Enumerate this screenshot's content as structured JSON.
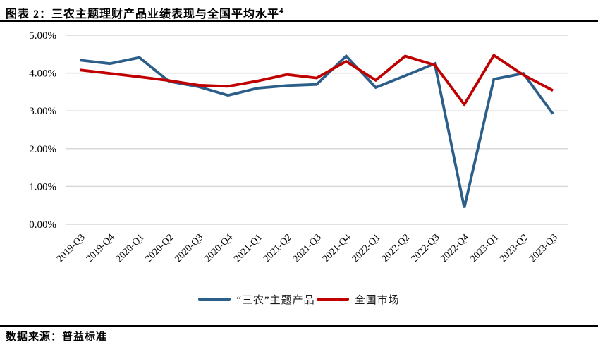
{
  "header": {
    "title": "图表 2：三农主题理财产品业绩表现与全国平均水平",
    "footnote_ref": "4"
  },
  "source": {
    "label": "数据来源：普益标准"
  },
  "colors": {
    "sannong_line": "#2B5F8A",
    "national_line": "#C00000",
    "gridline": "#D9D9D9",
    "rule": "#000000"
  },
  "chart_data": {
    "type": "line",
    "title": "三农主题理财产品业绩表现与全国平均水平",
    "categories": [
      "2019-Q3",
      "2019-Q4",
      "2020-Q1",
      "2020-Q2",
      "2020-Q3",
      "2020-Q4",
      "2021-Q1",
      "2021-Q2",
      "2021-Q3",
      "2021-Q4",
      "2022-Q1",
      "2022-Q2",
      "2022-Q3",
      "2022-Q4",
      "2023-Q1",
      "2023-Q2",
      "2023-Q3"
    ],
    "series": [
      {
        "name": "“三农”主题产品",
        "color": "#2B5F8A",
        "values": [
          4.34,
          4.25,
          4.41,
          3.78,
          3.64,
          3.41,
          3.6,
          3.67,
          3.7,
          4.45,
          3.62,
          3.93,
          4.25,
          0.44,
          3.84,
          3.99,
          2.92
        ]
      },
      {
        "name": "全国市场",
        "color": "#C00000",
        "values": [
          4.08,
          3.99,
          3.9,
          3.8,
          3.68,
          3.65,
          3.79,
          3.96,
          3.87,
          4.31,
          3.81,
          4.45,
          4.21,
          3.17,
          4.47,
          3.95,
          3.54
        ]
      }
    ],
    "ylim": [
      0,
      5
    ],
    "yticks": [
      {
        "value": 5,
        "label": "5.00%"
      },
      {
        "value": 4,
        "label": "4.00%"
      },
      {
        "value": 3,
        "label": "3.00%"
      },
      {
        "value": 2,
        "label": "2.00%"
      },
      {
        "value": 1,
        "label": "1.00%"
      },
      {
        "value": 0,
        "label": "0.00%"
      }
    ],
    "xlabel": "",
    "ylabel": "",
    "grid": "horizontal",
    "legend_position": "bottom"
  }
}
